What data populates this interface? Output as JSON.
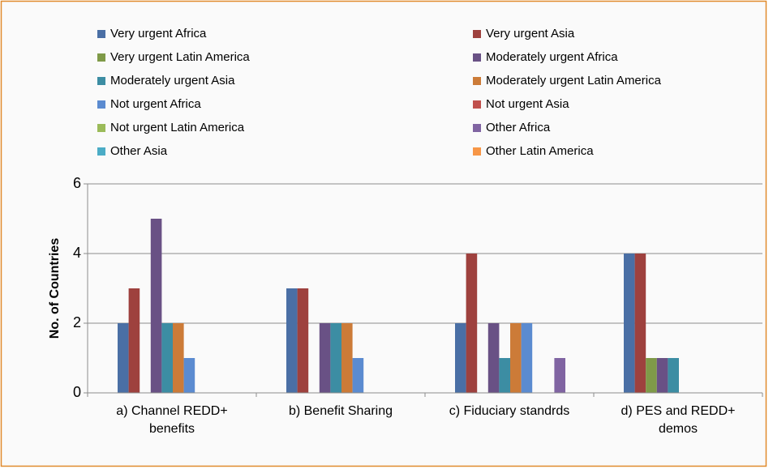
{
  "chart_data": {
    "type": "bar",
    "ylabel": "No. of Countries",
    "categories": [
      "a) Channel REDD+ benefits",
      "b) Benefit Sharing",
      "c) Fiduciary standrds",
      "d) PES and REDD+ demos"
    ],
    "series": [
      {
        "name": "Very urgent Africa",
        "color": "#4a6fa5",
        "values": [
          2,
          3,
          2,
          4
        ]
      },
      {
        "name": "Very urgent Asia",
        "color": "#9e413e",
        "values": [
          3,
          3,
          4,
          4
        ]
      },
      {
        "name": "Very urgent Latin America",
        "color": "#7f9a48",
        "values": [
          0,
          0,
          0,
          1
        ]
      },
      {
        "name": "Moderately urgent Africa",
        "color": "#695185",
        "values": [
          5,
          2,
          2,
          1
        ]
      },
      {
        "name": "Moderately urgent Asia",
        "color": "#3c8da3",
        "values": [
          2,
          2,
          1,
          1
        ]
      },
      {
        "name": "Moderately urgent Latin America",
        "color": "#cc7b38",
        "values": [
          2,
          2,
          2,
          0
        ]
      },
      {
        "name": "Not urgent Africa",
        "color": "#5b8bd0",
        "values": [
          1,
          1,
          2,
          0
        ]
      },
      {
        "name": "Not urgent Asia",
        "color": "#c0504d",
        "values": [
          0,
          0,
          0,
          0
        ]
      },
      {
        "name": "Not urgent Latin America",
        "color": "#9bbb59",
        "values": [
          0,
          0,
          0,
          0
        ]
      },
      {
        "name": "Other Africa",
        "color": "#8064a2",
        "values": [
          0,
          0,
          1,
          0
        ]
      },
      {
        "name": "Other Asia",
        "color": "#4bacc6",
        "values": [
          0,
          0,
          0,
          0
        ]
      },
      {
        "name": "Other Latin America",
        "color": "#f79646",
        "values": [
          0,
          0,
          0,
          0
        ]
      }
    ],
    "ylim": [
      0,
      6
    ],
    "yticks": [
      0,
      2,
      4,
      6
    ],
    "grid": true
  }
}
